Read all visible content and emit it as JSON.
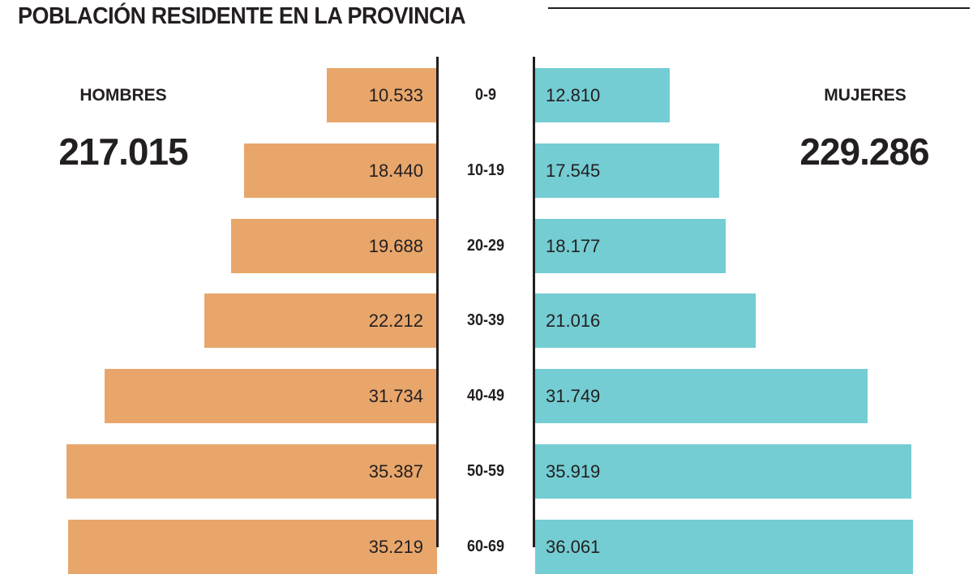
{
  "title": "POBLACIÓN RESIDENTE EN LA PROVINCIA",
  "colors": {
    "men": "#E8A66B",
    "women": "#74CDD3"
  },
  "chart_data": {
    "type": "bar",
    "subtype": "population-pyramid",
    "title": "POBLACIÓN RESIDENTE EN LA PROVINCIA",
    "categories": [
      "0-9",
      "10-19",
      "20-29",
      "30-39",
      "40-49",
      "50-59",
      "60-69"
    ],
    "series": [
      {
        "name": "HOMBRES",
        "total": "217.015",
        "values": [
          10533,
          18440,
          19688,
          22212,
          31734,
          35387,
          35219
        ],
        "labels": [
          "10.533",
          "18.440",
          "19.688",
          "22.212",
          "31.734",
          "35.387",
          "35.219"
        ]
      },
      {
        "name": "MUJERES",
        "total": "229.286",
        "values": [
          12810,
          17545,
          18177,
          21016,
          31749,
          35919,
          36061
        ],
        "labels": [
          "12.810",
          "17.545",
          "18.177",
          "21.016",
          "31.749",
          "35.919",
          "36.061"
        ]
      }
    ]
  }
}
